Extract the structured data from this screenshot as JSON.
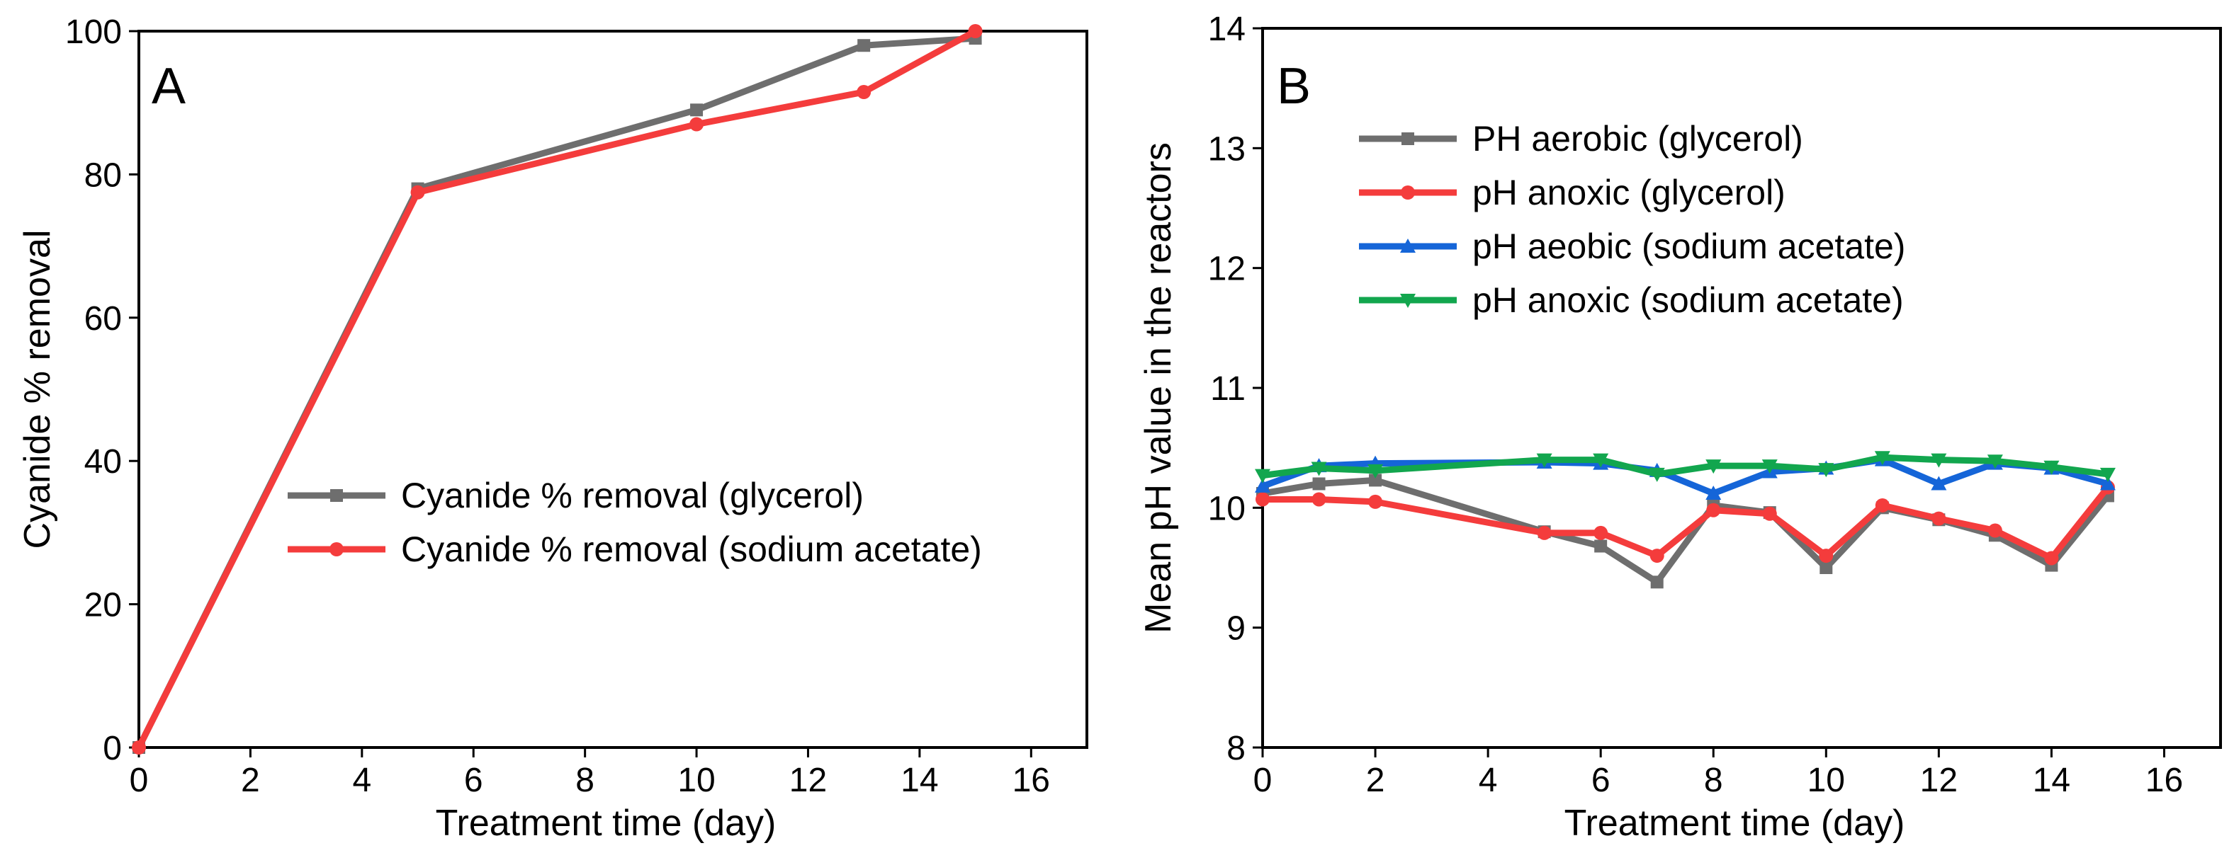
{
  "chart_data": [
    {
      "type": "line",
      "panel_label": "A",
      "xlabel": "Treatment time (day)",
      "ylabel": "Cyanide % removal",
      "xlim": [
        0,
        17
      ],
      "ylim": [
        0,
        100
      ],
      "xticks": [
        0,
        2,
        4,
        6,
        8,
        10,
        12,
        14,
        16
      ],
      "yticks": [
        0,
        20,
        40,
        60,
        80,
        100
      ],
      "legend_position": "center-right",
      "series": [
        {
          "name": "Cyanide % removal (glycerol)",
          "color": "#6e6e6e",
          "marker": "square",
          "x": [
            0,
            5,
            10,
            13,
            15
          ],
          "y": [
            0,
            78,
            89,
            98,
            99
          ]
        },
        {
          "name": "Cyanide % removal (sodium acetate)",
          "color": "#f43c3c",
          "marker": "circle",
          "x": [
            0,
            5,
            10,
            13,
            15
          ],
          "y": [
            0,
            77.5,
            87,
            91.5,
            100
          ]
        }
      ]
    },
    {
      "type": "line",
      "panel_label": "B",
      "xlabel": "Treatment time (day)",
      "ylabel": "Mean pH value in the reactors",
      "xlim": [
        0,
        17
      ],
      "ylim": [
        8,
        14
      ],
      "xticks": [
        0,
        2,
        4,
        6,
        8,
        10,
        12,
        14,
        16
      ],
      "yticks": [
        8,
        9,
        10,
        11,
        12,
        13,
        14
      ],
      "legend_position": "top-left",
      "series": [
        {
          "name": "PH aerobic (glycerol)",
          "color": "#6e6e6e",
          "marker": "square",
          "x": [
            0,
            1,
            2,
            5,
            6,
            7,
            8,
            9,
            10,
            11,
            12,
            13,
            14,
            15
          ],
          "y": [
            10.12,
            10.2,
            10.23,
            9.8,
            9.68,
            9.38,
            10.02,
            9.96,
            9.5,
            10.0,
            9.9,
            9.77,
            9.52,
            10.1
          ]
        },
        {
          "name": "pH anoxic (glycerol)",
          "color": "#f43c3c",
          "marker": "circle",
          "x": [
            0,
            1,
            2,
            5,
            6,
            7,
            8,
            9,
            10,
            11,
            12,
            13,
            14,
            15
          ],
          "y": [
            10.07,
            10.07,
            10.05,
            9.79,
            9.79,
            9.6,
            9.98,
            9.95,
            9.6,
            10.02,
            9.91,
            9.81,
            9.58,
            10.17
          ]
        },
        {
          "name": "pH aeobic (sodium acetate)",
          "color": "#1565d8",
          "marker": "triangle-up",
          "x": [
            0,
            1,
            2,
            5,
            6,
            7,
            8,
            9,
            10,
            11,
            12,
            13,
            14,
            15
          ],
          "y": [
            10.18,
            10.35,
            10.37,
            10.38,
            10.37,
            10.31,
            10.12,
            10.3,
            10.33,
            10.4,
            10.2,
            10.37,
            10.33,
            10.2
          ]
        },
        {
          "name": "pH anoxic (sodium acetate)",
          "color": "#12a64e",
          "marker": "triangle-down",
          "x": [
            0,
            1,
            2,
            5,
            6,
            7,
            8,
            9,
            10,
            11,
            12,
            13,
            14,
            15
          ],
          "y": [
            10.27,
            10.33,
            10.31,
            10.4,
            10.4,
            10.28,
            10.35,
            10.35,
            10.32,
            10.42,
            10.4,
            10.39,
            10.34,
            10.28
          ]
        }
      ]
    }
  ]
}
